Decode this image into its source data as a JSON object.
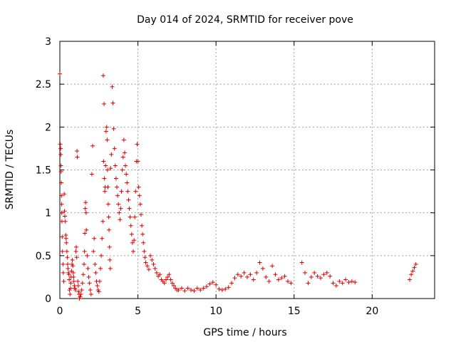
{
  "chart_data": {
    "type": "scatter",
    "title": "Day 014 of 2024, SRMTID for receiver pove",
    "xlabel": "GPS time / hours",
    "ylabel": "SRMTID / TECUs",
    "xlim": [
      0,
      24
    ],
    "ylim": [
      0,
      3
    ],
    "xticks": [
      0,
      5,
      10,
      15,
      20
    ],
    "xtick_labels": [
      "0",
      "5",
      "10",
      "15",
      "20"
    ],
    "yticks": [
      0,
      0.5,
      1,
      1.5,
      2,
      2.5,
      3
    ],
    "ytick_labels": [
      "0",
      "0.5",
      "1",
      "1.5",
      "2",
      "2.5",
      "3"
    ],
    "grid": true,
    "marker": "+",
    "series_color": "#e00000",
    "series": [
      {
        "points": [
          [
            0.0,
            2.62
          ],
          [
            0.03,
            1.8
          ],
          [
            0.05,
            1.75
          ],
          [
            0.06,
            1.68
          ],
          [
            0.07,
            1.55
          ],
          [
            0.08,
            1.48
          ],
          [
            0.09,
            1.35
          ],
          [
            0.1,
            1.2
          ],
          [
            0.11,
            1.1
          ],
          [
            0.12,
            1.0
          ],
          [
            0.13,
            0.9
          ],
          [
            0.15,
            0.72
          ],
          [
            0.17,
            0.55
          ],
          [
            0.2,
            0.4
          ],
          [
            0.22,
            0.3
          ],
          [
            0.25,
            0.2
          ],
          [
            0.28,
            1.22
          ],
          [
            0.3,
            1.02
          ],
          [
            0.32,
            0.96
          ],
          [
            0.35,
            0.9
          ],
          [
            0.38,
            0.74
          ],
          [
            0.4,
            0.7
          ],
          [
            0.42,
            0.65
          ],
          [
            0.45,
            0.55
          ],
          [
            0.48,
            0.48
          ],
          [
            0.5,
            0.4
          ],
          [
            0.52,
            0.35
          ],
          [
            0.55,
            0.3
          ],
          [
            0.58,
            0.28
          ],
          [
            0.6,
            0.22
          ],
          [
            0.62,
            0.1
          ],
          [
            0.65,
            0.05
          ],
          [
            0.68,
            0.12
          ],
          [
            0.7,
            0.18
          ],
          [
            0.72,
            0.25
          ],
          [
            0.75,
            0.32
          ],
          [
            0.78,
            0.4
          ],
          [
            0.8,
            0.45
          ],
          [
            0.83,
            0.38
          ],
          [
            0.86,
            0.3
          ],
          [
            0.88,
            0.25
          ],
          [
            0.9,
            0.2
          ],
          [
            0.93,
            0.15
          ],
          [
            0.96,
            0.12
          ],
          [
            1.0,
            0.1
          ],
          [
            1.03,
            0.55
          ],
          [
            1.05,
            0.6
          ],
          [
            1.08,
            0.48
          ],
          [
            1.1,
            1.72
          ],
          [
            1.12,
            1.65
          ],
          [
            1.15,
            0.2
          ],
          [
            1.18,
            0.15
          ],
          [
            1.2,
            0.08
          ],
          [
            1.23,
            0.05
          ],
          [
            1.25,
            0.0
          ],
          [
            1.3,
            0.02
          ],
          [
            1.35,
            0.05
          ],
          [
            1.4,
            0.1
          ],
          [
            1.45,
            0.18
          ],
          [
            1.5,
            0.28
          ],
          [
            1.55,
            0.4
          ],
          [
            1.58,
            0.55
          ],
          [
            1.6,
            0.76
          ],
          [
            1.63,
            1.05
          ],
          [
            1.65,
            1.12
          ],
          [
            1.68,
            1.0
          ],
          [
            1.7,
            0.8
          ],
          [
            1.75,
            0.5
          ],
          [
            1.8,
            0.35
          ],
          [
            1.85,
            0.25
          ],
          [
            1.9,
            0.18
          ],
          [
            1.95,
            0.1
          ],
          [
            2.0,
            0.05
          ],
          [
            2.05,
            1.45
          ],
          [
            2.1,
            1.78
          ],
          [
            2.15,
            0.55
          ],
          [
            2.2,
            0.7
          ],
          [
            2.25,
            0.4
          ],
          [
            2.3,
            0.3
          ],
          [
            2.35,
            0.2
          ],
          [
            2.4,
            0.15
          ],
          [
            2.45,
            0.1
          ],
          [
            2.5,
            0.08
          ],
          [
            2.55,
            0.2
          ],
          [
            2.6,
            0.35
          ],
          [
            2.65,
            0.5
          ],
          [
            2.7,
            0.7
          ],
          [
            2.75,
            0.9
          ],
          [
            2.78,
            2.6
          ],
          [
            2.8,
            1.6
          ],
          [
            2.83,
            2.27
          ],
          [
            2.85,
            1.4
          ],
          [
            2.88,
            1.25
          ],
          [
            2.9,
            1.3
          ],
          [
            2.93,
            1.55
          ],
          [
            2.96,
            1.95
          ],
          [
            3.0,
            2.0
          ],
          [
            3.03,
            1.85
          ],
          [
            3.05,
            1.5
          ],
          [
            3.08,
            1.3
          ],
          [
            3.1,
            1.1
          ],
          [
            3.13,
            0.95
          ],
          [
            3.15,
            0.8
          ],
          [
            3.18,
            0.6
          ],
          [
            3.2,
            0.45
          ],
          [
            3.23,
            0.35
          ],
          [
            3.25,
            1.52
          ],
          [
            3.3,
            1.68
          ],
          [
            3.35,
            2.47
          ],
          [
            3.4,
            2.28
          ],
          [
            3.45,
            1.98
          ],
          [
            3.5,
            1.75
          ],
          [
            3.55,
            1.55
          ],
          [
            3.6,
            1.4
          ],
          [
            3.65,
            1.3
          ],
          [
            3.7,
            1.2
          ],
          [
            3.75,
            1.1
          ],
          [
            3.8,
            1.0
          ],
          [
            3.85,
            0.92
          ],
          [
            3.9,
            1.05
          ],
          [
            3.95,
            1.25
          ],
          [
            4.0,
            1.5
          ],
          [
            4.05,
            1.65
          ],
          [
            4.1,
            1.85
          ],
          [
            4.15,
            1.7
          ],
          [
            4.2,
            1.55
          ],
          [
            4.25,
            1.45
          ],
          [
            4.3,
            1.35
          ],
          [
            4.35,
            1.25
          ],
          [
            4.4,
            1.15
          ],
          [
            4.45,
            1.05
          ],
          [
            4.5,
            0.95
          ],
          [
            4.55,
            0.85
          ],
          [
            4.6,
            0.75
          ],
          [
            4.65,
            0.65
          ],
          [
            4.7,
            0.55
          ],
          [
            4.75,
            0.68
          ],
          [
            4.8,
            0.95
          ],
          [
            4.85,
            1.25
          ],
          [
            4.9,
            1.6
          ],
          [
            4.95,
            1.8
          ],
          [
            5.0,
            1.6
          ],
          [
            5.05,
            1.3
          ],
          [
            5.1,
            1.2
          ],
          [
            5.15,
            1.1
          ],
          [
            5.2,
            0.98
          ],
          [
            5.25,
            0.85
          ],
          [
            5.3,
            0.75
          ],
          [
            5.35,
            0.65
          ],
          [
            5.4,
            0.55
          ],
          [
            5.45,
            0.48
          ],
          [
            5.5,
            0.42
          ],
          [
            5.6,
            0.38
          ],
          [
            5.7,
            0.34
          ],
          [
            5.8,
            0.5
          ],
          [
            5.9,
            0.45
          ],
          [
            6.0,
            0.4
          ],
          [
            6.1,
            0.35
          ],
          [
            6.2,
            0.3
          ],
          [
            6.3,
            0.26
          ],
          [
            6.4,
            0.28
          ],
          [
            6.5,
            0.22
          ],
          [
            6.6,
            0.2
          ],
          [
            6.7,
            0.18
          ],
          [
            6.8,
            0.22
          ],
          [
            6.9,
            0.25
          ],
          [
            7.0,
            0.28
          ],
          [
            7.1,
            0.22
          ],
          [
            7.2,
            0.18
          ],
          [
            7.3,
            0.15
          ],
          [
            7.4,
            0.12
          ],
          [
            7.5,
            0.1
          ],
          [
            7.6,
            0.1
          ],
          [
            7.8,
            0.12
          ],
          [
            8.0,
            0.09
          ],
          [
            8.2,
            0.12
          ],
          [
            8.4,
            0.1
          ],
          [
            8.6,
            0.09
          ],
          [
            8.8,
            0.12
          ],
          [
            9.0,
            0.1
          ],
          [
            9.2,
            0.12
          ],
          [
            9.4,
            0.14
          ],
          [
            9.6,
            0.17
          ],
          [
            9.8,
            0.19
          ],
          [
            10.0,
            0.16
          ],
          [
            10.2,
            0.11
          ],
          [
            10.4,
            0.1
          ],
          [
            10.6,
            0.11
          ],
          [
            10.8,
            0.13
          ],
          [
            11.0,
            0.18
          ],
          [
            11.2,
            0.24
          ],
          [
            11.4,
            0.28
          ],
          [
            11.6,
            0.26
          ],
          [
            11.8,
            0.3
          ],
          [
            12.0,
            0.25
          ],
          [
            12.2,
            0.28
          ],
          [
            12.4,
            0.22
          ],
          [
            12.6,
            0.3
          ],
          [
            12.8,
            0.42
          ],
          [
            13.0,
            0.35
          ],
          [
            13.2,
            0.25
          ],
          [
            13.4,
            0.2
          ],
          [
            13.6,
            0.38
          ],
          [
            13.8,
            0.28
          ],
          [
            14.0,
            0.22
          ],
          [
            14.2,
            0.24
          ],
          [
            14.4,
            0.26
          ],
          [
            14.6,
            0.2
          ],
          [
            14.8,
            0.18
          ],
          [
            15.5,
            0.42
          ],
          [
            15.7,
            0.3
          ],
          [
            15.9,
            0.18
          ],
          [
            16.1,
            0.25
          ],
          [
            16.3,
            0.3
          ],
          [
            16.5,
            0.26
          ],
          [
            16.7,
            0.24
          ],
          [
            16.9,
            0.28
          ],
          [
            17.1,
            0.3
          ],
          [
            17.3,
            0.26
          ],
          [
            17.5,
            0.18
          ],
          [
            17.7,
            0.15
          ],
          [
            17.9,
            0.2
          ],
          [
            18.1,
            0.18
          ],
          [
            18.3,
            0.22
          ],
          [
            18.5,
            0.19
          ],
          [
            18.7,
            0.2
          ],
          [
            18.9,
            0.19
          ],
          [
            22.4,
            0.22
          ],
          [
            22.5,
            0.28
          ],
          [
            22.6,
            0.32
          ],
          [
            22.7,
            0.36
          ],
          [
            22.8,
            0.4
          ]
        ]
      }
    ]
  }
}
